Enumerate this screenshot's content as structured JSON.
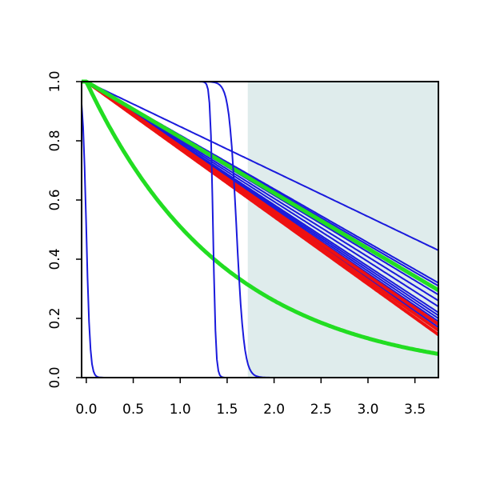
{
  "chart_data": {
    "type": "line",
    "title": "",
    "xlabel": "",
    "ylabel": "",
    "xlim": [
      -0.05,
      3.75
    ],
    "ylim": [
      0.0,
      1.0
    ],
    "x_ticks": [
      0.0,
      0.5,
      1.0,
      1.5,
      2.0,
      2.5,
      3.0,
      3.5
    ],
    "x_tick_labels": [
      "0.0",
      "0.5",
      "1.0",
      "1.5",
      "2.0",
      "2.5",
      "3.0",
      "3.5"
    ],
    "y_ticks": [
      0.0,
      0.2,
      0.4,
      0.6,
      0.8,
      1.0
    ],
    "y_tick_labels": [
      "0.0",
      "0.2",
      "0.4",
      "0.6",
      "0.8",
      "1.0"
    ],
    "grid": false,
    "legend": "none",
    "shaded_region": {
      "x_from": 1.72,
      "x_to": 3.75,
      "y_from": 0.0,
      "y_to": 1.0,
      "color": "#dfecec"
    },
    "colors": {
      "blue": "#1a1adc",
      "red": "#ee1111",
      "green": "#22dd22"
    },
    "series": [
      {
        "color": "blue",
        "width": 2,
        "kind": "linear",
        "y_at_3_75": 0.43
      },
      {
        "color": "blue",
        "width": 2,
        "kind": "linear",
        "y_at_3_75": 0.32
      },
      {
        "color": "blue",
        "width": 2,
        "kind": "linear",
        "y_at_3_75": 0.31
      },
      {
        "color": "blue",
        "width": 2,
        "kind": "linear",
        "y_at_3_75": 0.28
      },
      {
        "color": "blue",
        "width": 2,
        "kind": "linear",
        "y_at_3_75": 0.26
      },
      {
        "color": "blue",
        "width": 2,
        "kind": "linear",
        "y_at_3_75": 0.24
      },
      {
        "color": "blue",
        "width": 2,
        "kind": "linear",
        "y_at_3_75": 0.22
      },
      {
        "color": "blue",
        "width": 2,
        "kind": "linear",
        "y_at_3_75": 0.21
      },
      {
        "color": "blue",
        "width": 2,
        "kind": "linear",
        "y_at_3_75": 0.2
      },
      {
        "color": "blue",
        "width": 2,
        "kind": "linear",
        "y_at_3_75": 0.19
      },
      {
        "color": "blue",
        "width": 2,
        "kind": "linear",
        "y_at_3_75": 0.18
      },
      {
        "color": "blue",
        "width": 2,
        "kind": "linear",
        "y_at_3_75": 0.17
      },
      {
        "color": "red",
        "width": 4,
        "kind": "linear",
        "y_at_3_75": 0.18
      },
      {
        "color": "red",
        "width": 4,
        "kind": "linear",
        "y_at_3_75": 0.16
      },
      {
        "color": "red",
        "width": 4,
        "kind": "linear",
        "y_at_3_75": 0.145
      },
      {
        "color": "green",
        "width": 5,
        "kind": "linear",
        "y_at_3_75": 0.295
      },
      {
        "color": "green",
        "width": 5,
        "kind": "curve",
        "y_at_3_75": 0.08
      },
      {
        "color": "blue",
        "width": 2,
        "kind": "step",
        "center": 0.0,
        "steepness": 0.02
      },
      {
        "color": "blue",
        "width": 2,
        "kind": "step",
        "center": 1.35,
        "steepness": 0.015
      },
      {
        "color": "blue",
        "width": 2,
        "kind": "step",
        "center": 1.6,
        "steepness": 0.04
      }
    ]
  }
}
